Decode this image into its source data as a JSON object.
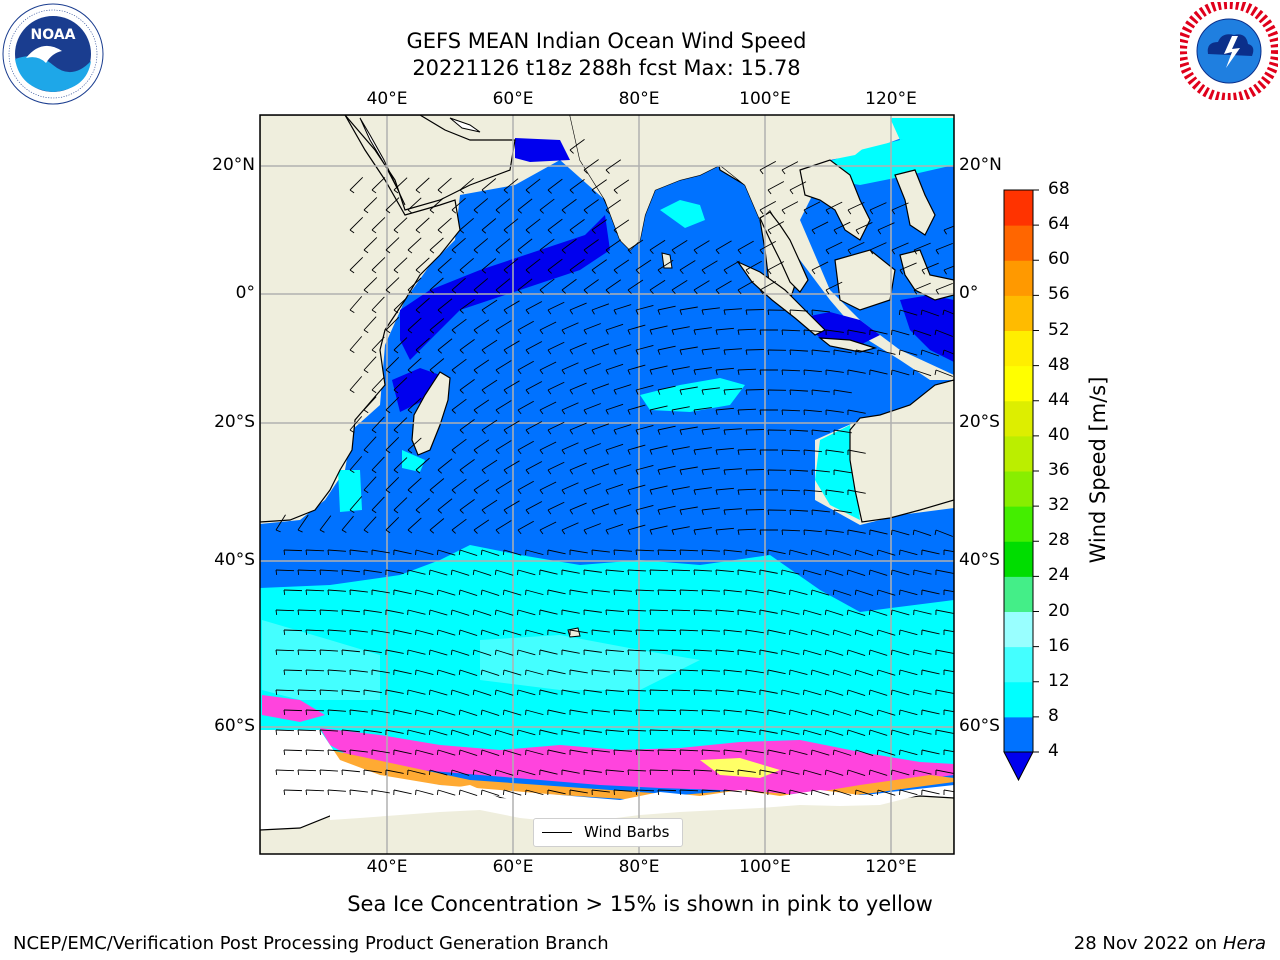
{
  "title": {
    "line1": "GEFS MEAN Indian Ocean Wind Speed",
    "line2": "20221126 t18z 288h fcst   Max: 15.78"
  },
  "map": {
    "lon_range": [
      20,
      130
    ],
    "lat_range": [
      -75,
      28
    ],
    "top_lon_ticks": [
      "40°E",
      "60°E",
      "80°E",
      "100°E",
      "120°E"
    ],
    "bottom_lon_ticks": [
      "40°E",
      "60°E",
      "80°E",
      "100°E",
      "120°E"
    ],
    "left_lat_ticks": [
      "20°N",
      "0°",
      "20°S",
      "40°S",
      "60°S"
    ],
    "right_lat_ticks": [
      "20°N",
      "0°",
      "20°S",
      "40°S",
      "60°S"
    ],
    "grid": true,
    "legend": {
      "label": "Wind Barbs",
      "placement": "bottom-center"
    },
    "land_color": "#efeedd",
    "ice_colors": [
      "#ff44dd",
      "#ffaa33",
      "#ffff66"
    ]
  },
  "colorbar": {
    "label": "Wind Speed [m/s]",
    "ticks": [
      "4",
      "8",
      "12",
      "16",
      "20",
      "24",
      "28",
      "32",
      "36",
      "40",
      "44",
      "48",
      "52",
      "56",
      "60",
      "64",
      "68"
    ],
    "colors": [
      "#0072ff",
      "#00ffff",
      "#44ffff",
      "#99ffff",
      "#44ee88",
      "#00dd00",
      "#44ee00",
      "#88ee00",
      "#bbee00",
      "#ddee00",
      "#ffff00",
      "#ffee00",
      "#ffbb00",
      "#ff9900",
      "#ff6600",
      "#ff3300",
      "#ff0000"
    ],
    "under_color": "#0000ee",
    "extend": "min"
  },
  "caption": "Sea Ice Concentration > 15% is shown in pink to yellow",
  "footer": {
    "credit": "NCEP/EMC/Verification Post Processing Product Generation Branch",
    "date": "28 Nov 2022 on",
    "host": "Hera"
  },
  "logos": {
    "left": "noaa-logo",
    "right": "nws-logo"
  }
}
